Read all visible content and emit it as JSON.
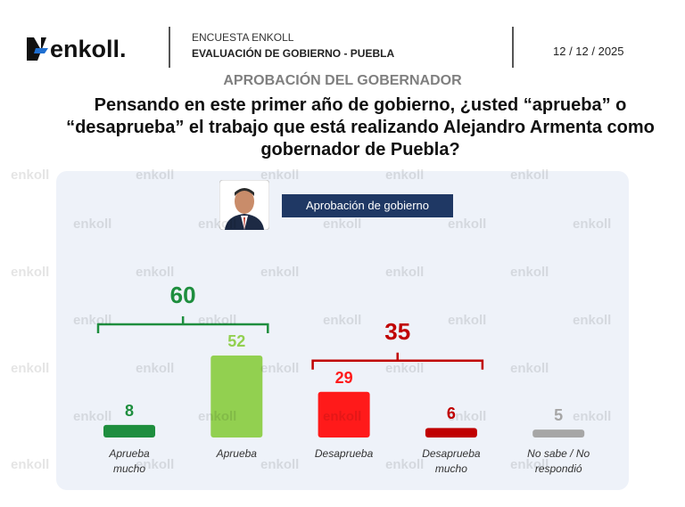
{
  "header": {
    "logo": "enkoll.",
    "survey": "ENCUESTA ENKOLL",
    "study": "EVALUACIÓN DE GOBIERNO - PUEBLA",
    "date": "12 / 12 / 2025"
  },
  "section": "APROBACIÓN DEL GOBERNADOR",
  "question": "Pensando en este primer año de gobierno, ¿usted “aprueba” o “desaprueba” el trabajo que está realizando Alejandro Armenta como gobernador de Puebla?",
  "watermark": "enkoll",
  "chart_data": {
    "type": "bar",
    "legend_badge": "Aprobación de gobierno",
    "categories": [
      "Aprueba mucho",
      "Aprueba",
      "Desaprueba",
      "Desaprueba mucho",
      "No sabe / No respondió"
    ],
    "values": [
      8,
      52,
      29,
      6,
      5
    ],
    "colors": [
      "#1e8e3e",
      "#92d050",
      "#ff1a1a",
      "#c00000",
      "#a6a6a6"
    ],
    "groups": [
      {
        "value": 60,
        "color": "#1e8e3e",
        "categories": [
          "Aprueba mucho",
          "Aprueba"
        ]
      },
      {
        "value": 35,
        "color": "#c00000",
        "categories": [
          "Desaprueba",
          "Desaprueba mucho"
        ]
      }
    ]
  }
}
